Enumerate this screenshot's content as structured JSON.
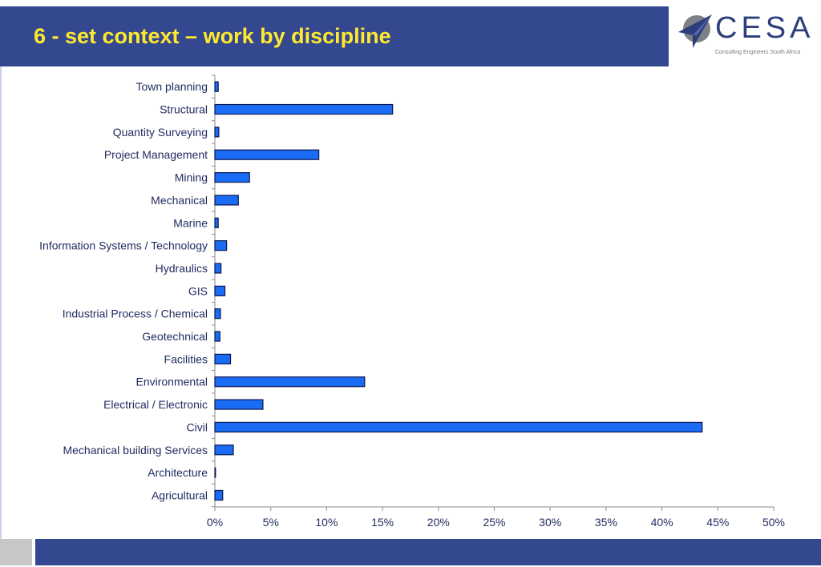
{
  "slide": {
    "title": "6 -  set context – work by discipline"
  },
  "logo": {
    "word": "CESA",
    "tagline": "Consulting Engineers South Africa"
  },
  "colors": {
    "header": "#34488f",
    "title": "#ffe92e",
    "bar_fill": "#1a6cf5",
    "bar_stroke": "#0b1850",
    "footer_gray": "#c7c7c7"
  },
  "chart_data": {
    "type": "bar",
    "orientation": "horizontal",
    "categories": [
      "Town planning",
      "Structural",
      "Quantity Surveying",
      "Project Management",
      "Mining",
      "Mechanical",
      "Marine",
      "Information Systems / Technology",
      "Hydraulics",
      "GIS",
      "Industrial Process / Chemical",
      "Geotechnical",
      "Facilities",
      "Environmental",
      "Electrical / Electronic",
      "Civil",
      "Mechanical building Services",
      "Architecture",
      "Agricultural"
    ],
    "values": [
      0.3,
      15.9,
      0.35,
      9.3,
      3.1,
      2.1,
      0.3,
      1.05,
      0.55,
      0.9,
      0.5,
      0.45,
      1.4,
      13.4,
      4.3,
      43.6,
      1.65,
      0.05,
      0.7
    ],
    "xlim": [
      0,
      50
    ],
    "xticks": [
      "0%",
      "5%",
      "10%",
      "15%",
      "20%",
      "25%",
      "30%",
      "35%",
      "40%",
      "45%",
      "50%"
    ],
    "grid": false,
    "legend": "none"
  }
}
